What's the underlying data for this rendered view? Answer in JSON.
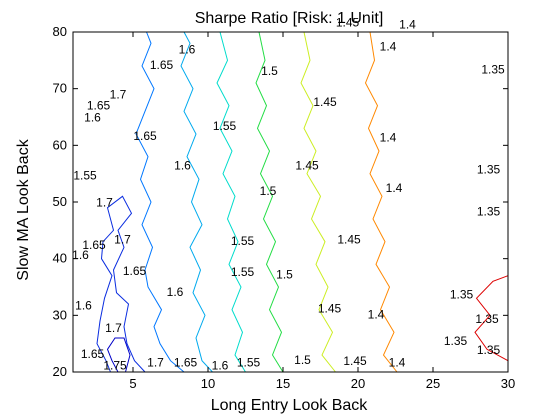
{
  "chart_data": {
    "type": "contour",
    "title": "Sharpe Ratio [Risk: 1 Unit]",
    "xlabel": "Long Entry Look Back",
    "ylabel": "Slow MA Look Back",
    "xlim": [
      1,
      30
    ],
    "ylim": [
      20,
      80
    ],
    "x_ticks": [
      5,
      10,
      15,
      20,
      25,
      30
    ],
    "y_ticks": [
      20,
      30,
      40,
      50,
      60,
      70,
      80
    ],
    "grid": false,
    "colormap": "jet",
    "levels": [
      {
        "value": "1.75",
        "color": "#0000c8",
        "xs": [
          [
            4.0,
            20
          ],
          [
            3.6,
            22
          ],
          [
            3.3,
            24
          ],
          [
            3.8,
            26
          ],
          [
            4.4,
            26
          ],
          [
            4.8,
            23
          ],
          [
            4.5,
            20
          ]
        ]
      },
      {
        "value": "1.7",
        "color": "#0a2de0",
        "xs": [
          [
            5.8,
            20
          ],
          [
            5.1,
            22
          ],
          [
            4.6,
            25
          ],
          [
            4.4,
            28
          ],
          [
            4.7,
            32
          ],
          [
            3.9,
            34
          ],
          [
            3.7,
            38
          ],
          [
            4.4,
            42
          ],
          [
            4.0,
            45
          ],
          [
            4.9,
            48
          ],
          [
            4.3,
            51
          ],
          [
            3.3,
            49
          ],
          [
            3.7,
            45
          ],
          [
            3.0,
            43
          ],
          [
            2.9,
            40
          ],
          [
            3.6,
            37
          ],
          [
            3.1,
            33
          ],
          [
            2.8,
            29
          ],
          [
            2.6,
            25
          ],
          [
            3.2,
            22
          ],
          [
            3.5,
            20
          ]
        ]
      },
      {
        "value": "1.65",
        "color": "#0077ff",
        "xs": [
          [
            8.4,
            20
          ],
          [
            7.5,
            22
          ],
          [
            6.8,
            25
          ],
          [
            6.4,
            28
          ],
          [
            6.9,
            31
          ],
          [
            6.0,
            35
          ],
          [
            5.8,
            38
          ],
          [
            6.3,
            42
          ],
          [
            5.6,
            46
          ],
          [
            6.2,
            50
          ],
          [
            5.5,
            54
          ],
          [
            6.0,
            58
          ],
          [
            5.2,
            62
          ],
          [
            5.8,
            66
          ],
          [
            6.4,
            70
          ],
          [
            5.6,
            74
          ],
          [
            6.2,
            78
          ],
          [
            5.9,
            80
          ]
        ]
      },
      {
        "value": "1.6",
        "color": "#00aaee",
        "xs": [
          [
            10.3,
            20
          ],
          [
            9.6,
            22
          ],
          [
            9.2,
            26
          ],
          [
            9.8,
            30
          ],
          [
            9.0,
            34
          ],
          [
            9.5,
            38
          ],
          [
            8.8,
            42
          ],
          [
            9.6,
            46
          ],
          [
            8.9,
            50
          ],
          [
            9.4,
            54
          ],
          [
            8.6,
            58
          ],
          [
            9.2,
            62
          ],
          [
            8.4,
            66
          ],
          [
            9.0,
            70
          ],
          [
            8.2,
            74
          ],
          [
            8.8,
            78
          ],
          [
            8.4,
            80
          ]
        ]
      },
      {
        "value": "1.55",
        "color": "#00dccc",
        "xs": [
          [
            12.5,
            20
          ],
          [
            11.8,
            23
          ],
          [
            12.3,
            27
          ],
          [
            11.6,
            31
          ],
          [
            12.2,
            35
          ],
          [
            11.4,
            39
          ],
          [
            12.0,
            43
          ],
          [
            11.3,
            47
          ],
          [
            11.8,
            51
          ],
          [
            11.0,
            55
          ],
          [
            11.6,
            59
          ],
          [
            10.8,
            63
          ],
          [
            11.4,
            67
          ],
          [
            10.6,
            71
          ],
          [
            11.3,
            75
          ],
          [
            10.8,
            80
          ]
        ]
      },
      {
        "value": "1.5",
        "color": "#22dd44",
        "xs": [
          [
            15.0,
            20
          ],
          [
            14.3,
            23
          ],
          [
            14.9,
            27
          ],
          [
            14.1,
            31
          ],
          [
            14.7,
            35
          ],
          [
            13.9,
            39
          ],
          [
            14.5,
            43
          ],
          [
            13.7,
            47
          ],
          [
            14.3,
            51
          ],
          [
            13.5,
            55
          ],
          [
            14.1,
            59
          ],
          [
            13.3,
            63
          ],
          [
            13.9,
            67
          ],
          [
            13.2,
            71
          ],
          [
            13.8,
            75
          ],
          [
            13.4,
            80
          ]
        ]
      },
      {
        "value": "1.45",
        "color": "#ccee22",
        "xs": [
          [
            18.5,
            20
          ],
          [
            17.6,
            23
          ],
          [
            18.3,
            27
          ],
          [
            17.4,
            31
          ],
          [
            18.0,
            35
          ],
          [
            17.2,
            39
          ],
          [
            17.8,
            43
          ],
          [
            16.9,
            47
          ],
          [
            17.5,
            51
          ],
          [
            16.6,
            55
          ],
          [
            17.2,
            59
          ],
          [
            16.4,
            63
          ],
          [
            17.0,
            67
          ],
          [
            16.2,
            71
          ],
          [
            16.8,
            75
          ],
          [
            16.4,
            80
          ]
        ]
      },
      {
        "value": "1.4",
        "color": "#ff8800",
        "xs": [
          [
            22.6,
            20
          ],
          [
            21.7,
            23
          ],
          [
            22.4,
            27
          ],
          [
            21.5,
            31
          ],
          [
            22.1,
            35
          ],
          [
            21.2,
            39
          ],
          [
            21.8,
            43
          ],
          [
            21.0,
            47
          ],
          [
            21.6,
            51
          ],
          [
            20.8,
            55
          ],
          [
            21.4,
            59
          ],
          [
            20.7,
            63
          ],
          [
            21.3,
            67
          ],
          [
            20.5,
            71
          ],
          [
            21.1,
            75
          ],
          [
            20.8,
            80
          ]
        ]
      },
      {
        "value": "1.35",
        "color": "#dd0000",
        "xs": [
          [
            30.0,
            22
          ],
          [
            28.6,
            24
          ],
          [
            27.8,
            27
          ],
          [
            28.8,
            30
          ],
          [
            27.9,
            33
          ],
          [
            29.0,
            36
          ],
          [
            30.0,
            37
          ]
        ]
      }
    ],
    "labels": [
      {
        "text": "1.75",
        "x": 3.8,
        "y": 21.0
      },
      {
        "text": "1.7",
        "x": 6.5,
        "y": 21.5
      },
      {
        "text": "1.65",
        "x": 8.5,
        "y": 21.5
      },
      {
        "text": "1.6",
        "x": 10.8,
        "y": 21.0
      },
      {
        "text": "1.55",
        "x": 12.7,
        "y": 21.5
      },
      {
        "text": "1.5",
        "x": 16.3,
        "y": 22.0
      },
      {
        "text": "1.45",
        "x": 19.8,
        "y": 21.8
      },
      {
        "text": "1.4",
        "x": 22.6,
        "y": 21.5
      },
      {
        "text": "1.35",
        "x": 26.5,
        "y": 25.3
      },
      {
        "text": "1.35",
        "x": 28.7,
        "y": 23.7
      },
      {
        "text": "1.35",
        "x": 28.6,
        "y": 29.2
      },
      {
        "text": "1.35",
        "x": 26.9,
        "y": 33.5
      },
      {
        "text": "1.35",
        "x": 28.7,
        "y": 48.2
      },
      {
        "text": "1.35",
        "x": 28.7,
        "y": 55.6
      },
      {
        "text": "1.35",
        "x": 29.0,
        "y": 73.2
      },
      {
        "text": "1.4",
        "x": 23.3,
        "y": 81.2
      },
      {
        "text": "1.4",
        "x": 22.0,
        "y": 77.3
      },
      {
        "text": "1.4",
        "x": 22.0,
        "y": 61.2
      },
      {
        "text": "1.4",
        "x": 21.2,
        "y": 30.0
      },
      {
        "text": "1.4",
        "x": 22.4,
        "y": 52.3
      },
      {
        "text": "1.45",
        "x": 19.3,
        "y": 81.5
      },
      {
        "text": "1.45",
        "x": 17.8,
        "y": 67.5
      },
      {
        "text": "1.45",
        "x": 16.6,
        "y": 56.3
      },
      {
        "text": "1.45",
        "x": 19.4,
        "y": 43.2
      },
      {
        "text": "1.45",
        "x": 18.1,
        "y": 31.1
      },
      {
        "text": "1.5",
        "x": 14.1,
        "y": 73.0
      },
      {
        "text": "1.5",
        "x": 14.0,
        "y": 51.8
      },
      {
        "text": "1.5",
        "x": 15.1,
        "y": 37.1
      },
      {
        "text": "1.55",
        "x": 11.1,
        "y": 63.3
      },
      {
        "text": "1.55",
        "x": 12.3,
        "y": 43.0
      },
      {
        "text": "1.55",
        "x": 12.3,
        "y": 37.5
      },
      {
        "text": "1.6",
        "x": 8.6,
        "y": 76.8
      },
      {
        "text": "1.6",
        "x": 8.3,
        "y": 56.3
      },
      {
        "text": "1.6",
        "x": 7.8,
        "y": 34.0
      },
      {
        "text": "1.65",
        "x": 6.9,
        "y": 74.0
      },
      {
        "text": "1.65",
        "x": 2.7,
        "y": 66.9
      },
      {
        "text": "1.65",
        "x": 5.8,
        "y": 61.5
      },
      {
        "text": "1.65",
        "x": 2.4,
        "y": 42.3
      },
      {
        "text": "1.65",
        "x": 5.1,
        "y": 37.7
      },
      {
        "text": "1.65",
        "x": 2.3,
        "y": 23.0
      },
      {
        "text": "1.7",
        "x": 4.0,
        "y": 68.8
      },
      {
        "text": "1.7",
        "x": 3.1,
        "y": 49.8
      },
      {
        "text": "1.7",
        "x": 4.3,
        "y": 43.2
      },
      {
        "text": "1.7",
        "x": 3.7,
        "y": 27.6
      },
      {
        "text": "1.6",
        "x": 2.3,
        "y": 64.8
      },
      {
        "text": "1.55",
        "x": 1.8,
        "y": 54.5
      },
      {
        "text": "1.6",
        "x": 1.5,
        "y": 40.5
      },
      {
        "text": "1.6",
        "x": 1.7,
        "y": 31.6
      }
    ]
  }
}
